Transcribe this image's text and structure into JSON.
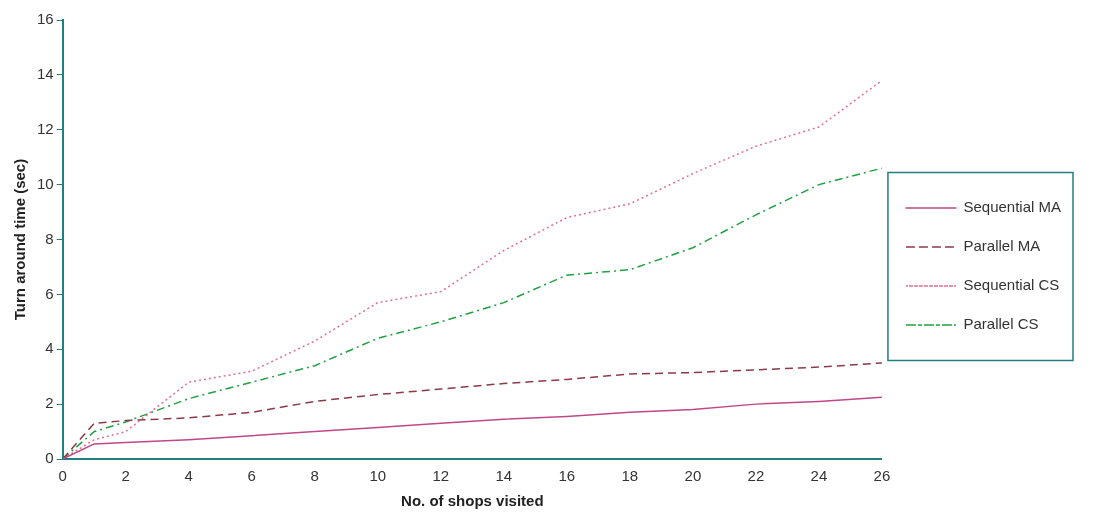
{
  "chart_data": {
    "type": "line",
    "xlabel": "No. of shops visited",
    "ylabel": "Turn around time (sec)",
    "x": [
      0,
      1,
      2,
      4,
      6,
      8,
      10,
      12,
      14,
      16,
      18,
      20,
      22,
      24,
      26
    ],
    "xlim": [
      0,
      26
    ],
    "xticks": [
      0,
      2,
      4,
      6,
      8,
      10,
      12,
      14,
      16,
      18,
      20,
      22,
      24,
      26
    ],
    "ylim": [
      0,
      16
    ],
    "yticks": [
      0,
      2,
      4,
      6,
      8,
      10,
      12,
      14,
      16
    ],
    "grid": false,
    "legend": "right",
    "marker": "none",
    "series": [
      {
        "name": "Sequential MA",
        "color": "#c04888",
        "line_style": "solid",
        "values": [
          0,
          0.55,
          0.6,
          0.7,
          0.85,
          1.0,
          1.15,
          1.3,
          1.45,
          1.55,
          1.7,
          1.8,
          2.0,
          2.1,
          2.25
        ]
      },
      {
        "name": "Parallel MA",
        "color": "#8b3a4a",
        "line_style": "dashed",
        "values": [
          0,
          1.3,
          1.4,
          1.5,
          1.7,
          2.1,
          2.35,
          2.55,
          2.75,
          2.9,
          3.1,
          3.15,
          3.25,
          3.35,
          3.5
        ]
      },
      {
        "name": "Sequential CS",
        "color": "#e07090",
        "line_style": "dotted",
        "values": [
          0,
          0.7,
          1.0,
          2.8,
          3.2,
          4.3,
          5.7,
          6.1,
          7.6,
          8.8,
          9.3,
          10.4,
          11.4,
          12.1,
          13.8
        ]
      },
      {
        "name": "Parallel CS",
        "color": "#20a040",
        "line_style": "dashdot",
        "values": [
          0,
          1.0,
          1.35,
          2.2,
          2.8,
          3.4,
          4.4,
          5.0,
          5.7,
          6.7,
          6.9,
          7.7,
          8.9,
          10.0,
          10.6
        ]
      }
    ]
  }
}
